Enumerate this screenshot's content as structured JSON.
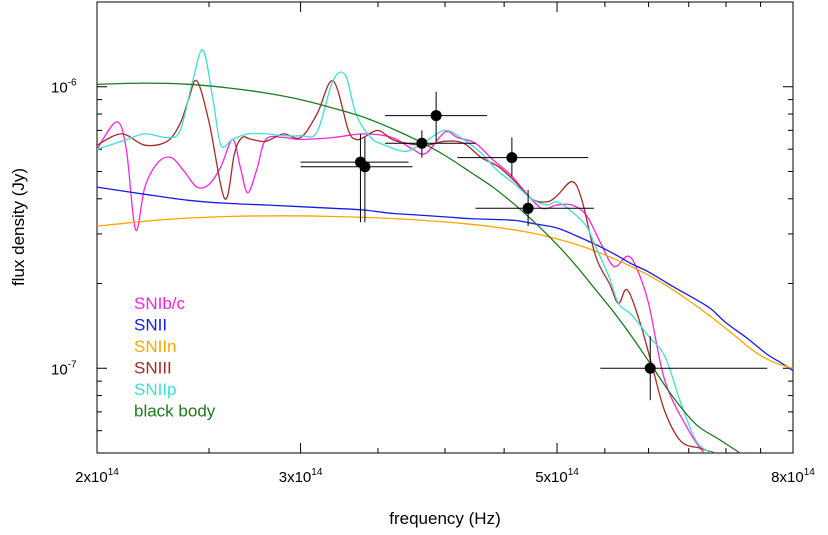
{
  "chart_data": {
    "type": "scatter",
    "title": "",
    "xlabel": "frequency (Hz)",
    "ylabel": "flux density (Jy)",
    "xscale": "log",
    "yscale": "log",
    "xlim": [
      200000000000000.0,
      800000000000000.0
    ],
    "ylim": [
      5e-08,
      2e-06
    ],
    "grid": false,
    "legend_position": "bottom-left",
    "x_ticks": [
      {
        "value": 200000000000000.0,
        "mant": "2x10",
        "exp": "14"
      },
      {
        "value": 300000000000000.0,
        "mant": "3x10",
        "exp": "14"
      },
      {
        "value": 500000000000000.0,
        "mant": "5x10",
        "exp": "14"
      },
      {
        "value": 800000000000000.0,
        "mant": "8x10",
        "exp": "14"
      }
    ],
    "y_ticks": [
      {
        "value": 1e-06,
        "mant": "10",
        "exp": "-6"
      },
      {
        "value": 1e-07,
        "mant": "10",
        "exp": "-7"
      }
    ],
    "observations": [
      {
        "x": 338000000000000.0,
        "y": 5.4e-07,
        "xerr": [
          300000000000000.0,
          372000000000000.0
        ],
        "yerr": [
          3.3e-07,
          6.8e-07
        ]
      },
      {
        "x": 341000000000000.0,
        "y": 5.2e-07,
        "xerr": [
          300000000000000.0,
          375000000000000.0
        ],
        "yerr": [
          3.3e-07,
          6.6e-07
        ]
      },
      {
        "x": 393000000000000.0,
        "y": 7.9e-07,
        "xerr": [
          355000000000000.0,
          435000000000000.0
        ],
        "yerr": [
          6.4e-07,
          9.6e-07
        ]
      },
      {
        "x": 382000000000000.0,
        "y": 6.3e-07,
        "xerr": [
          355000000000000.0,
          425000000000000.0
        ],
        "yerr": [
          5.6e-07,
          7e-07
        ]
      },
      {
        "x": 457000000000000.0,
        "y": 5.6e-07,
        "xerr": [
          410000000000000.0,
          532000000000000.0
        ],
        "yerr": [
          4.8e-07,
          6.6e-07
        ]
      },
      {
        "x": 472000000000000.0,
        "y": 3.7e-07,
        "xerr": [
          425000000000000.0,
          538000000000000.0
        ],
        "yerr": [
          3.2e-07,
          4.3e-07
        ]
      },
      {
        "x": 602000000000000.0,
        "y": 1e-07,
        "xerr": [
          545000000000000.0,
          760000000000000.0
        ],
        "yerr": [
          7.7e-08,
          1.3e-07
        ]
      }
    ],
    "series": [
      {
        "name": "SNIb/c",
        "color": "#ff22e0",
        "x": [
          200000000000000.0,
          208000000000000.0,
          212000000000000.0,
          216000000000000.0,
          220000000000000.0,
          226000000000000.0,
          232000000000000.0,
          238000000000000.0,
          244000000000000.0,
          250000000000000.0,
          256000000000000.0,
          262000000000000.0,
          266000000000000.0,
          270000000000000.0,
          275000000000000.0,
          280000000000000.0,
          290000000000000.0,
          300000000000000.0,
          320000000000000.0,
          340000000000000.0,
          360000000000000.0,
          375000000000000.0,
          385000000000000.0,
          400000000000000.0,
          410000000000000.0,
          425000000000000.0,
          440000000000000.0,
          455000000000000.0,
          470000000000000.0,
          485000000000000.0,
          500000000000000.0,
          515000000000000.0,
          530000000000000.0,
          545000000000000.0,
          560000000000000.0,
          575000000000000.0,
          585000000000000.0,
          600000000000000.0,
          620000000000000.0,
          650000000000000.0,
          670000000000000.0
        ],
        "y": [
          6e-07,
          7.5e-07,
          6e-07,
          3.1e-07,
          4.4e-07,
          5.4e-07,
          5.6e-07,
          5e-07,
          4.4e-07,
          4.5e-07,
          5.2e-07,
          6.5e-07,
          5.2e-07,
          4.2e-07,
          5.1e-07,
          6.5e-07,
          6.6e-07,
          6.5e-07,
          6.6e-07,
          6.8e-07,
          6.6e-07,
          6e-07,
          5.8e-07,
          6.9e-07,
          6.6e-07,
          6.3e-07,
          5.5e-07,
          4.9e-07,
          4.2e-07,
          3.7e-07,
          3.8e-07,
          3.8e-07,
          3.5e-07,
          2.8e-07,
          2.3e-07,
          2.5e-07,
          2.3e-07,
          1.7e-07,
          9e-08,
          6e-08,
          5e-08
        ]
      },
      {
        "name": "SNII",
        "color": "#1a1ae6",
        "x": [
          200000000000000.0,
          220000000000000.0,
          240000000000000.0,
          260000000000000.0,
          280000000000000.0,
          300000000000000.0,
          320000000000000.0,
          340000000000000.0,
          360000000000000.0,
          380000000000000.0,
          400000000000000.0,
          420000000000000.0,
          440000000000000.0,
          460000000000000.0,
          480000000000000.0,
          500000000000000.0,
          520000000000000.0,
          540000000000000.0,
          560000000000000.0,
          580000000000000.0,
          600000000000000.0,
          630000000000000.0,
          660000000000000.0,
          680000000000000.0,
          700000000000000.0,
          730000000000000.0,
          760000000000000.0,
          780000000000000.0,
          800000000000000.0
        ],
        "y": [
          4.4e-07,
          4.15e-07,
          3.95e-07,
          3.85e-07,
          3.8e-07,
          3.75e-07,
          3.7e-07,
          3.65e-07,
          3.55e-07,
          3.5e-07,
          3.45e-07,
          3.4e-07,
          3.38e-07,
          3.35e-07,
          3.25e-07,
          3.15e-07,
          2.95e-07,
          2.75e-07,
          2.55e-07,
          2.35e-07,
          2.2e-07,
          1.95e-07,
          1.75e-07,
          1.62e-07,
          1.45e-07,
          1.28e-07,
          1.12e-07,
          1.05e-07,
          9.8e-08
        ]
      },
      {
        "name": "SNIIn",
        "color": "#ffa500",
        "x": [
          200000000000000.0,
          230000000000000.0,
          260000000000000.0,
          290000000000000.0,
          320000000000000.0,
          350000000000000.0,
          380000000000000.0,
          410000000000000.0,
          440000000000000.0,
          470000000000000.0,
          500000000000000.0,
          530000000000000.0,
          560000000000000.0,
          590000000000000.0,
          620000000000000.0,
          650000000000000.0,
          680000000000000.0,
          710000000000000.0,
          740000000000000.0,
          770000000000000.0,
          800000000000000.0
        ],
        "y": [
          3.2e-07,
          3.38e-07,
          3.46e-07,
          3.48e-07,
          3.46e-07,
          3.42e-07,
          3.36e-07,
          3.28e-07,
          3.18e-07,
          3.05e-07,
          2.88e-07,
          2.68e-07,
          2.45e-07,
          2.22e-07,
          1.98e-07,
          1.74e-07,
          1.52e-07,
          1.32e-07,
          1.15e-07,
          1.05e-07,
          1e-07
        ]
      },
      {
        "name": "SNIII",
        "color": "#a52a2a",
        "x": [
          200000000000000.0,
          210000000000000.0,
          220000000000000.0,
          230000000000000.0,
          236000000000000.0,
          240000000000000.0,
          244000000000000.0,
          250000000000000.0,
          258000000000000.0,
          263000000000000.0,
          267000000000000.0,
          272000000000000.0,
          280000000000000.0,
          290000000000000.0,
          300000000000000.0,
          310000000000000.0,
          320000000000000.0,
          330000000000000.0,
          335000000000000.0,
          340000000000000.0,
          350000000000000.0,
          360000000000000.0,
          370000000000000.0,
          385000000000000.0,
          400000000000000.0,
          415000000000000.0,
          430000000000000.0,
          445000000000000.0,
          460000000000000.0,
          475000000000000.0,
          490000000000000.0,
          500000000000000.0,
          515000000000000.0,
          525000000000000.0,
          540000000000000.0,
          555000000000000.0,
          565000000000000.0,
          575000000000000.0,
          590000000000000.0,
          605000000000000.0,
          620000000000000.0,
          640000000000000.0,
          665000000000000.0,
          685000000000000.0
        ],
        "y": [
          6.2e-07,
          6.8e-07,
          6.2e-07,
          6.4e-07,
          7.4e-07,
          9e-07,
          1.05e-06,
          7.5e-07,
          4e-07,
          5.8e-07,
          6.6e-07,
          6.5e-07,
          6.4e-07,
          6.8e-07,
          6.6e-07,
          8e-07,
          1.05e-06,
          7e-07,
          6.5e-07,
          6.6e-07,
          7e-07,
          6.5e-07,
          6.3e-07,
          6.2e-07,
          6.4e-07,
          6.3e-07,
          5.6e-07,
          5.2e-07,
          4.6e-07,
          4e-07,
          3.9e-07,
          4.1e-07,
          4.6e-07,
          4e-07,
          2.5e-07,
          2e-07,
          1.7e-07,
          1.9e-07,
          1.45e-07,
          1e-07,
          7e-08,
          5.5e-08,
          5.2e-08,
          5e-08
        ]
      },
      {
        "name": "SNIIp",
        "color": "#40e0d0",
        "x": [
          200000000000000.0,
          210000000000000.0,
          220000000000000.0,
          230000000000000.0,
          236000000000000.0,
          242000000000000.0,
          247000000000000.0,
          252000000000000.0,
          256000000000000.0,
          262000000000000.0,
          270000000000000.0,
          280000000000000.0,
          290000000000000.0,
          300000000000000.0,
          310000000000000.0,
          320000000000000.0,
          328000000000000.0,
          335000000000000.0,
          345000000000000.0,
          355000000000000.0,
          370000000000000.0,
          385000000000000.0,
          400000000000000.0,
          415000000000000.0,
          430000000000000.0,
          445000000000000.0,
          460000000000000.0,
          475000000000000.0,
          490000000000000.0,
          500000000000000.0,
          515000000000000.0,
          530000000000000.0,
          540000000000000.0,
          555000000000000.0,
          565000000000000.0,
          580000000000000.0,
          600000000000000.0,
          620000000000000.0,
          640000000000000.0,
          660000000000000.0,
          680000000000000.0
        ],
        "y": [
          6e-07,
          6.4e-07,
          6.8e-07,
          6.6e-07,
          7e-07,
          1.05e-06,
          1.35e-06,
          9e-07,
          6.2e-07,
          6.5e-07,
          6.8e-07,
          6.8e-07,
          6.7e-07,
          6.7e-07,
          6.9e-07,
          1.05e-06,
          1.1e-06,
          8e-07,
          6.6e-07,
          6.2e-07,
          5.9e-07,
          6.4e-07,
          7e-07,
          6.5e-07,
          5.8e-07,
          5e-07,
          4.5e-07,
          4e-07,
          3.8e-07,
          3.9e-07,
          3.6e-07,
          3.2e-07,
          2.7e-07,
          2.1e-07,
          1.7e-07,
          1.55e-07,
          1.3e-07,
          1.1e-07,
          7.5e-08,
          5.5e-08,
          5e-08
        ]
      },
      {
        "name": "black body",
        "color": "#1e7b1e",
        "x": [
          200000000000000.0,
          220000000000000.0,
          240000000000000.0,
          260000000000000.0,
          280000000000000.0,
          300000000000000.0,
          320000000000000.0,
          340000000000000.0,
          360000000000000.0,
          380000000000000.0,
          400000000000000.0,
          420000000000000.0,
          440000000000000.0,
          460000000000000.0,
          480000000000000.0,
          500000000000000.0,
          520000000000000.0,
          540000000000000.0,
          560000000000000.0,
          580000000000000.0,
          600000000000000.0,
          630000000000000.0,
          660000000000000.0,
          690000000000000.0,
          720000000000000.0
        ],
        "y": [
          1.02e-06,
          1.03e-06,
          1.02e-06,
          9.9e-07,
          9.5e-07,
          9e-07,
          8.4e-07,
          7.8e-07,
          7.1e-07,
          6.4e-07,
          5.7e-07,
          5e-07,
          4.4e-07,
          3.8e-07,
          3.25e-07,
          2.75e-07,
          2.3e-07,
          1.9e-07,
          1.58e-07,
          1.3e-07,
          1.06e-07,
          7.9e-08,
          6.3e-08,
          5.6e-08,
          5e-08
        ]
      }
    ]
  }
}
